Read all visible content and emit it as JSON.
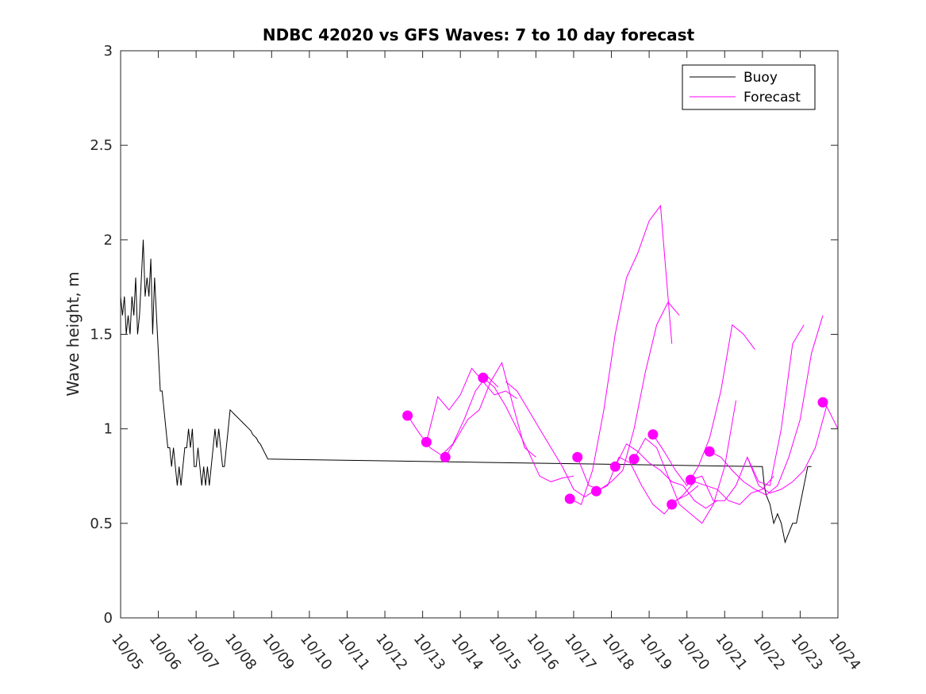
{
  "chart_data": {
    "type": "line",
    "title": "NDBC 42020 vs GFS Waves: 7 to 10 day forecast",
    "xlabel": "",
    "ylabel": "Wave height, m",
    "xlim": [
      0,
      19
    ],
    "ylim": [
      0,
      3
    ],
    "x_tick_values": [
      0,
      1,
      2,
      3,
      4,
      5,
      6,
      7,
      8,
      9,
      10,
      11,
      12,
      13,
      14,
      15,
      16,
      17,
      18,
      19
    ],
    "x_tick_labels": [
      "10/05",
      "10/06",
      "10/07",
      "10/08",
      "10/09",
      "10/10",
      "10/11",
      "10/12",
      "10/13",
      "10/14",
      "10/15",
      "10/16",
      "10/17",
      "10/18",
      "10/19",
      "10/20",
      "10/21",
      "10/22",
      "10/23",
      "10/24"
    ],
    "y_tick_values": [
      0,
      0.5,
      1,
      1.5,
      2,
      2.5,
      3
    ],
    "y_tick_labels": [
      "0",
      "0.5",
      "1",
      "1.5",
      "2",
      "2.5",
      "3"
    ],
    "x_units": "days since 10/05",
    "legend": {
      "position": "top-right",
      "entries": [
        {
          "label": "Buoy",
          "color": "#000000"
        },
        {
          "label": "Forecast",
          "color": "#ff00ff"
        }
      ]
    },
    "series": [
      {
        "name": "Buoy",
        "color": "#000000",
        "x": [
          0,
          0.05,
          0.1,
          0.15,
          0.2,
          0.25,
          0.3,
          0.35,
          0.4,
          0.45,
          0.5,
          0.55,
          0.6,
          0.65,
          0.7,
          0.75,
          0.8,
          0.85,
          0.9,
          0.95,
          1.0,
          1.05,
          1.1,
          1.15,
          1.2,
          1.25,
          1.3,
          1.35,
          1.4,
          1.45,
          1.5,
          1.55,
          1.6,
          1.65,
          1.7,
          1.75,
          1.8,
          1.85,
          1.9,
          1.95,
          2.0,
          2.05,
          2.1,
          2.15,
          2.2,
          2.25,
          2.3,
          2.35,
          2.4,
          2.45,
          2.5,
          2.55,
          2.6,
          2.65,
          2.7,
          2.75,
          2.8,
          2.85,
          2.9,
          2.95,
          3.0,
          3.05,
          3.1,
          3.15,
          3.2,
          3.25,
          3.3,
          3.35,
          3.4,
          3.45,
          3.5,
          3.55,
          3.6,
          3.65,
          3.7,
          3.75,
          3.8,
          3.85,
          3.9,
          17.0,
          17.05,
          17.1,
          17.2,
          17.3,
          17.4,
          17.5,
          17.6,
          17.7,
          17.8,
          17.85,
          17.9,
          17.95,
          18.0,
          18.05,
          18.1,
          18.15,
          18.2,
          18.25,
          18.3
        ],
        "y": [
          1.7,
          1.6,
          1.7,
          1.5,
          1.6,
          1.5,
          1.7,
          1.6,
          1.8,
          1.5,
          1.6,
          1.8,
          2.0,
          1.7,
          1.8,
          1.7,
          1.9,
          1.5,
          1.8,
          1.6,
          1.4,
          1.2,
          1.2,
          1.1,
          1.0,
          0.9,
          0.9,
          0.8,
          0.9,
          0.8,
          0.7,
          0.8,
          0.7,
          0.8,
          0.9,
          0.9,
          1.0,
          0.9,
          1.0,
          0.8,
          0.8,
          0.9,
          0.8,
          0.7,
          0.8,
          0.7,
          0.8,
          0.7,
          0.8,
          0.9,
          1.0,
          0.9,
          1.0,
          0.9,
          0.8,
          0.8,
          0.9,
          1.0,
          1.1,
          1.09,
          1.08,
          1.07,
          1.06,
          1.05,
          1.04,
          1.03,
          1.02,
          1.01,
          1.0,
          0.99,
          0.97,
          0.96,
          0.95,
          0.93,
          0.92,
          0.9,
          0.88,
          0.86,
          0.84,
          0.8,
          0.7,
          0.65,
          0.6,
          0.5,
          0.55,
          0.5,
          0.4,
          0.45,
          0.5,
          0.5,
          0.5,
          0.55,
          0.6,
          0.65,
          0.7,
          0.75,
          0.8,
          0.8,
          0.8
        ]
      },
      {
        "name": "Forecast",
        "color": "#ff00ff",
        "runs": [
          {
            "x": [
              7.6,
              7.9,
              8.2,
              8.5,
              8.8,
              9.1,
              9.4,
              9.7,
              10.0
            ],
            "y": [
              1.07,
              0.98,
              0.9,
              0.86,
              0.92,
              1.05,
              1.2,
              1.28,
              1.22
            ]
          },
          {
            "x": [
              8.1,
              8.4,
              8.7,
              9.0,
              9.3,
              9.6,
              9.9,
              10.2,
              10.5
            ],
            "y": [
              0.93,
              1.17,
              1.1,
              1.18,
              1.32,
              1.25,
              1.18,
              1.2,
              1.16
            ]
          },
          {
            "x": [
              8.6,
              8.9,
              9.2,
              9.5,
              9.8,
              10.1,
              10.4,
              10.7,
              11.0
            ],
            "y": [
              0.85,
              0.95,
              1.05,
              1.1,
              1.25,
              1.35,
              1.12,
              0.9,
              0.85
            ]
          },
          {
            "x": [
              9.6,
              9.9,
              10.2,
              10.5,
              10.8,
              11.1,
              11.4,
              11.7,
              12.0
            ],
            "y": [
              1.27,
              1.22,
              1.12,
              1.0,
              0.88,
              0.75,
              0.72,
              0.74,
              0.75
            ]
          },
          {
            "x": [
              10.2,
              10.5,
              10.8,
              11.1,
              11.4,
              11.7,
              12.0,
              12.3,
              12.6
            ],
            "y": [
              1.25,
              1.2,
              1.1,
              1.0,
              0.9,
              0.8,
              0.68,
              0.64,
              0.68
            ]
          },
          {
            "x": [
              11.9,
              12.2,
              12.5,
              12.8,
              13.1,
              13.4,
              13.7,
              14.0,
              14.3,
              14.6
            ],
            "y": [
              0.63,
              0.6,
              0.78,
              1.1,
              1.5,
              1.8,
              1.93,
              2.1,
              2.18,
              1.45
            ]
          },
          {
            "x": [
              12.1,
              12.4,
              12.7,
              13.0,
              13.3,
              13.6,
              13.9,
              14.2,
              14.5,
              14.8
            ],
            "y": [
              0.85,
              0.7,
              0.68,
              0.72,
              0.78,
              1.0,
              1.3,
              1.55,
              1.67,
              1.6
            ]
          },
          {
            "x": [
              12.6,
              12.9,
              13.2,
              13.5,
              13.8,
              14.1,
              14.4,
              14.7,
              15.0,
              15.3
            ],
            "y": [
              0.67,
              0.7,
              0.85,
              0.82,
              0.7,
              0.6,
              0.55,
              0.62,
              0.65,
              0.7
            ]
          },
          {
            "x": [
              13.1,
              13.4,
              13.7,
              14.0,
              14.3,
              14.6,
              14.9,
              15.2,
              15.5,
              15.8
            ],
            "y": [
              0.8,
              0.92,
              0.88,
              0.82,
              0.78,
              0.72,
              0.7,
              0.62,
              0.58,
              0.62
            ]
          },
          {
            "x": [
              13.6,
              13.9,
              14.2,
              14.5,
              14.8,
              15.1,
              15.4,
              15.7,
              16.0,
              16.3
            ],
            "y": [
              0.84,
              0.95,
              0.9,
              0.75,
              0.6,
              0.55,
              0.5,
              0.6,
              0.8,
              1.15
            ]
          },
          {
            "x": [
              14.1,
              14.4,
              14.7,
              15.0,
              15.3,
              15.6,
              15.9,
              16.2,
              16.5,
              16.8
            ],
            "y": [
              0.97,
              0.88,
              0.78,
              0.7,
              0.8,
              0.95,
              1.2,
              1.55,
              1.5,
              1.42
            ]
          },
          {
            "x": [
              14.6,
              14.9,
              15.2,
              15.5,
              15.8,
              16.1,
              16.4,
              16.7,
              17.0,
              17.3
            ],
            "y": [
              0.6,
              0.65,
              0.72,
              0.7,
              0.68,
              0.62,
              0.6,
              0.66,
              0.68,
              0.75
            ]
          },
          {
            "x": [
              15.1,
              15.4,
              15.7,
              16.0,
              16.3,
              16.6,
              16.9,
              17.2,
              17.5,
              17.8,
              18.1
            ],
            "y": [
              0.73,
              0.75,
              0.62,
              0.62,
              0.7,
              0.85,
              0.72,
              0.7,
              1.0,
              1.45,
              1.55
            ]
          },
          {
            "x": [
              15.6,
              15.9,
              16.2,
              16.5,
              16.8,
              17.1,
              17.4,
              17.7,
              18.0,
              18.3,
              18.6
            ],
            "y": [
              0.88,
              0.85,
              0.78,
              0.72,
              0.68,
              0.65,
              0.7,
              0.85,
              1.05,
              1.4,
              1.6
            ]
          },
          {
            "x": [
              16.6,
              16.9,
              17.2,
              17.5,
              17.8,
              18.1,
              18.4,
              18.7,
              19.0
            ],
            "y": [
              0.85,
              0.7,
              0.66,
              0.68,
              0.72,
              0.78,
              0.9,
              1.12,
              1.0
            ]
          }
        ],
        "markers": {
          "x": [
            7.6,
            8.1,
            8.6,
            9.6,
            11.9,
            12.1,
            12.6,
            13.1,
            13.6,
            14.1,
            14.6,
            15.1,
            15.6,
            18.6
          ],
          "y": [
            1.07,
            0.93,
            0.85,
            1.27,
            0.63,
            0.85,
            0.67,
            0.8,
            0.84,
            0.97,
            0.6,
            0.73,
            0.88,
            1.14
          ]
        }
      }
    ]
  }
}
